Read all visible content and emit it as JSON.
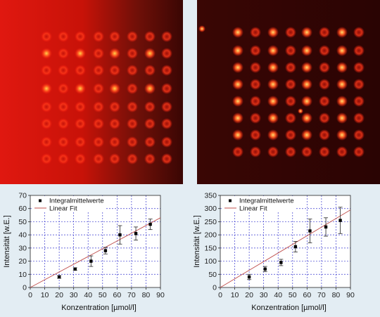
{
  "panels": {
    "left_image": {
      "subject": "fluorescent spot array microscopy image (high background)"
    },
    "right_image": {
      "subject": "fluorescent spot array microscopy image (low background)"
    }
  },
  "colors": {
    "page_background": "#e3edf3",
    "fluorescence": "#ff2a1a",
    "spot_core": "#ffd24a",
    "fit_line": "#c0504d",
    "grid": "#3a3ad0",
    "marker": "#000000"
  },
  "chart_data": [
    {
      "type": "scatter",
      "ylabel": "Intensität [w.E.]",
      "xlabel": "Konzentration [µmol/l]",
      "xlim": [
        0,
        90
      ],
      "ylim": [
        0,
        70
      ],
      "xticks": [
        "0",
        "10",
        "20",
        "30",
        "40",
        "50",
        "60",
        "70",
        "80",
        "90"
      ],
      "yticks": [
        "0",
        "10",
        "20",
        "30",
        "40",
        "50",
        "60",
        "70"
      ],
      "grid": true,
      "legend_position": "top-left",
      "series": [
        {
          "name": "Integralmittelwerte",
          "marker": "square",
          "x": [
            20,
            31,
            42,
            52,
            62,
            73,
            83
          ],
          "y": [
            8,
            14,
            20,
            28,
            40,
            41,
            48
          ],
          "error": [
            1,
            1,
            4,
            2.5,
            7,
            5,
            4
          ]
        },
        {
          "name": "Linear Fit",
          "line": true,
          "x": [
            0,
            90
          ],
          "y": [
            0,
            53
          ]
        }
      ]
    },
    {
      "type": "scatter",
      "ylabel": "Intensität [w.E.]",
      "xlabel": "Konzentration [µmol/l]",
      "xlim": [
        0,
        90
      ],
      "ylim": [
        0,
        350
      ],
      "xticks": [
        "0",
        "10",
        "20",
        "30",
        "40",
        "50",
        "60",
        "70",
        "80",
        "90"
      ],
      "yticks": [
        "0",
        "50",
        "100",
        "150",
        "200",
        "250",
        "300",
        "350"
      ],
      "grid": true,
      "legend_position": "top-left",
      "series": [
        {
          "name": "Integralmittelwerte",
          "marker": "square",
          "x": [
            20,
            31,
            42,
            52,
            62,
            73,
            83
          ],
          "y": [
            40,
            70,
            95,
            155,
            215,
            230,
            255
          ],
          "error": [
            10,
            10,
            12,
            20,
            45,
            35,
            50
          ]
        },
        {
          "name": "Linear Fit",
          "line": true,
          "x": [
            0,
            90
          ],
          "y": [
            0,
            295
          ]
        }
      ]
    }
  ]
}
